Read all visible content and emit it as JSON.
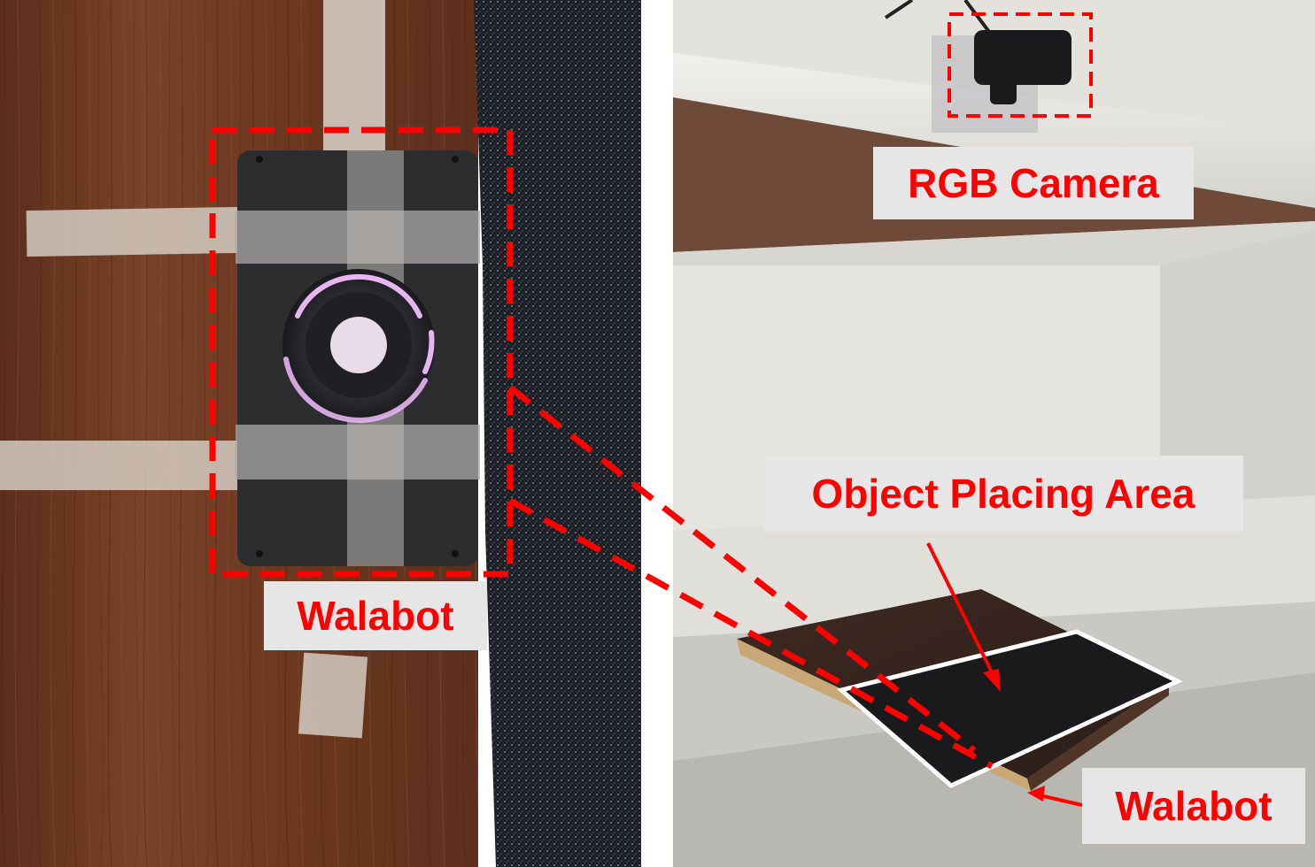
{
  "labels": {
    "walabot_left": "Walabot",
    "rgb_camera": "RGB Camera",
    "object_placing_area": "Object Placing Area",
    "walabot_right": "Walabot"
  },
  "colors": {
    "annotation": "#ff0000",
    "label_background": "#e7e6e6"
  }
}
